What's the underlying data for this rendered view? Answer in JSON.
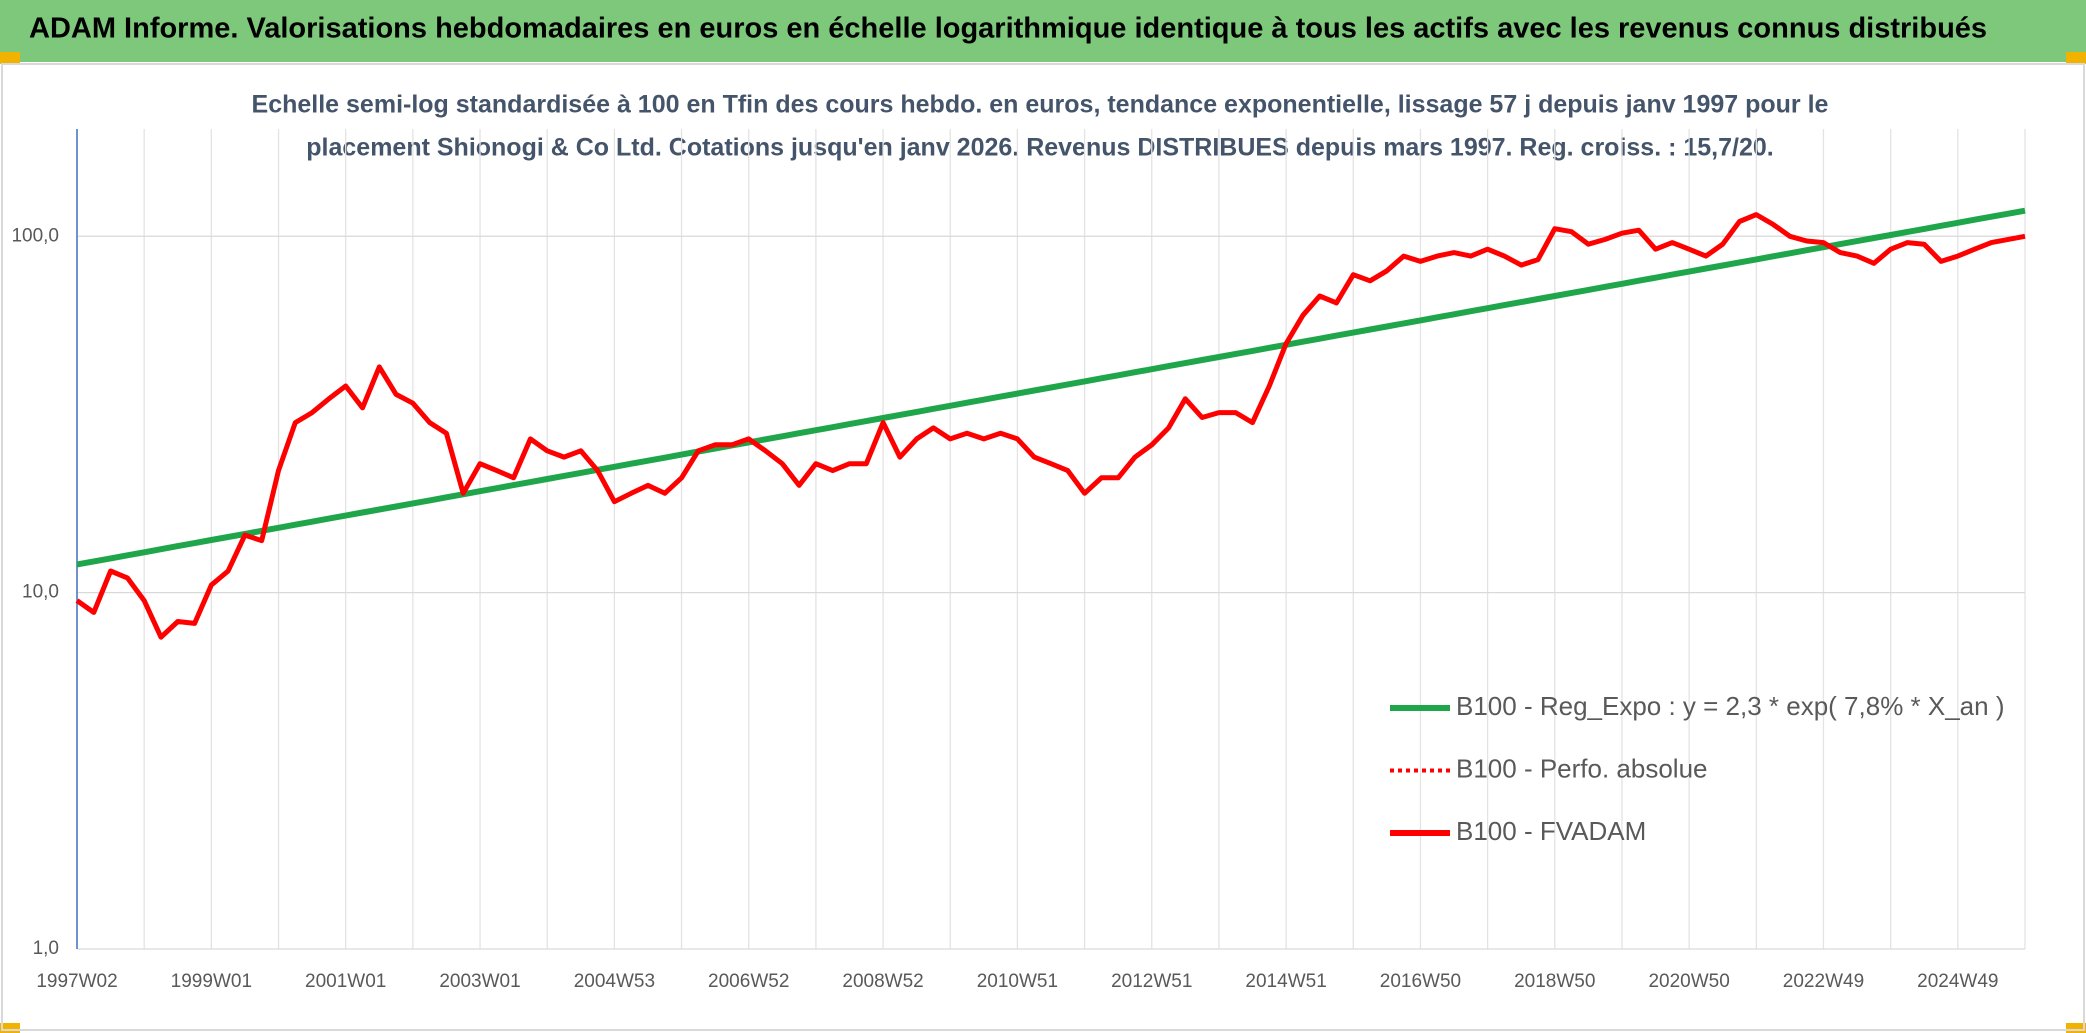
{
  "chart_data": {
    "type": "line",
    "title": "ADAM Informe. Valorisations hebdomadaires en euros en échelle logarithmique identique à tous les actifs avec les revenus connus distribués",
    "subtitle": [
      "Echelle semi-log standardisée à 100 en Tfin des cours hebdo. en euros, tendance exponentielle, lissage 57 j depuis janv 1997 pour le",
      "placement Shionogi & Co Ltd. Cotations jusqu'en janv 2026. Revenus DISTRIBUES depuis mars 1997. Reg. croiss. : 15,7/20."
    ],
    "categories": [
      "1997W02",
      null,
      null,
      null,
      null,
      null,
      null,
      null,
      "1999W01",
      null,
      null,
      null,
      null,
      null,
      null,
      null,
      "2001W01",
      null,
      null,
      null,
      null,
      null,
      null,
      null,
      "2003W01",
      null,
      null,
      null,
      null,
      null,
      null,
      null,
      "2004W53",
      null,
      null,
      null,
      null,
      null,
      null,
      null,
      "2006W52",
      null,
      null,
      null,
      null,
      null,
      null,
      null,
      "2008W52",
      null,
      null,
      null,
      null,
      null,
      null,
      null,
      "2010W51",
      null,
      null,
      null,
      null,
      null,
      null,
      null,
      "2012W51",
      null,
      null,
      null,
      null,
      null,
      null,
      null,
      "2014W51",
      null,
      null,
      null,
      null,
      null,
      null,
      null,
      "2016W50",
      null,
      null,
      null,
      null,
      null,
      null,
      null,
      "2018W50",
      null,
      null,
      null,
      null,
      null,
      null,
      null,
      "2020W50",
      null,
      null,
      null,
      null,
      null,
      null,
      null,
      "2022W49",
      null,
      null,
      null,
      null,
      null,
      null,
      null,
      "2024W49",
      null,
      null,
      null,
      null
    ],
    "series": [
      {
        "name": "B100 - Reg_Expo : y = 2,3 * exp( 7,8% *  X_an )",
        "color": "#1fa64a",
        "dash": "solid",
        "values": [
          12.0,
          12.24,
          12.48,
          12.73,
          12.98,
          13.24,
          13.51,
          13.77,
          14.05,
          14.33,
          14.61,
          14.91,
          15.2,
          15.51,
          15.81,
          16.13,
          16.45,
          16.78,
          17.11,
          17.45,
          17.8,
          18.15,
          18.51,
          18.88,
          19.26,
          19.64,
          20.03,
          20.43,
          20.84,
          21.26,
          21.68,
          22.11,
          22.55,
          23.0,
          23.46,
          23.92,
          24.4,
          24.89,
          25.38,
          25.89,
          26.4,
          26.93,
          27.46,
          28.01,
          28.56,
          29.13,
          29.71,
          30.3,
          30.91,
          31.53,
          32.15,
          32.79,
          33.45,
          34.11,
          34.79,
          35.48,
          36.19,
          36.91,
          37.65,
          38.39,
          39.16,
          39.94,
          40.73,
          41.54,
          42.37,
          43.21,
          44.07,
          44.95,
          45.84,
          46.76,
          47.69,
          48.64,
          49.6,
          50.59,
          51.59,
          52.62,
          53.67,
          54.74,
          55.83,
          56.94,
          58.08,
          59.24,
          60.42,
          61.62,
          62.84,
          64.1,
          65.37,
          66.67,
          68.0,
          69.35,
          70.73,
          72.14,
          73.58,
          75.04,
          76.53,
          78.06,
          79.6,
          81.18,
          82.8,
          84.45,
          86.13,
          87.85,
          89.59,
          91.37,
          93.2,
          95.05,
          96.95,
          98.88,
          100.8,
          102.9,
          104.9,
          107.0,
          109.1,
          111.3,
          113.5,
          115.7,
          118.0
        ]
      },
      {
        "name": "B100 - Perfo. absolue",
        "color": "#ff0000",
        "dash": "dotted",
        "values": [
          9.5,
          8.8,
          11.5,
          11.0,
          9.5,
          7.5,
          8.3,
          8.2,
          10.5,
          11.5,
          14.5,
          14.0,
          22,
          30,
          32,
          35,
          38,
          33,
          43,
          36,
          34,
          30,
          28,
          19,
          23,
          22,
          21,
          27,
          25,
          24,
          25,
          22,
          18,
          19,
          20,
          19,
          21,
          25,
          26,
          26,
          27,
          25,
          23,
          20,
          23,
          22,
          23,
          23,
          30,
          24,
          27,
          29,
          27,
          28,
          27,
          28,
          27,
          24,
          23,
          22,
          19,
          21,
          21,
          24,
          26,
          29,
          35,
          31,
          32,
          32,
          30,
          38,
          50,
          60,
          68,
          65,
          78,
          75,
          80,
          88,
          85,
          88,
          90,
          88,
          92,
          88,
          83,
          86,
          105,
          103,
          95,
          98,
          102,
          104,
          92,
          96,
          92,
          88,
          95,
          110,
          115,
          108,
          100,
          97,
          96,
          90,
          88,
          84,
          92,
          96,
          95,
          85,
          88,
          92,
          96,
          98,
          100
        ]
      },
      {
        "name": "B100 - FVADAM",
        "color": "#ff0000",
        "dash": "solid",
        "values": [
          9.5,
          8.8,
          11.5,
          11.0,
          9.5,
          7.5,
          8.3,
          8.2,
          10.5,
          11.5,
          14.5,
          14.0,
          22,
          30,
          32,
          35,
          38,
          33,
          43,
          36,
          34,
          30,
          28,
          19,
          23,
          22,
          21,
          27,
          25,
          24,
          25,
          22,
          18,
          19,
          20,
          19,
          21,
          25,
          26,
          26,
          27,
          25,
          23,
          20,
          23,
          22,
          23,
          23,
          30,
          24,
          27,
          29,
          27,
          28,
          27,
          28,
          27,
          24,
          23,
          22,
          19,
          21,
          21,
          24,
          26,
          29,
          35,
          31,
          32,
          32,
          30,
          38,
          50,
          60,
          68,
          65,
          78,
          75,
          80,
          88,
          85,
          88,
          90,
          88,
          92,
          88,
          83,
          86,
          105,
          103,
          95,
          98,
          102,
          104,
          92,
          96,
          92,
          88,
          95,
          110,
          115,
          108,
          100,
          97,
          96,
          90,
          88,
          84,
          92,
          96,
          95,
          85,
          88,
          92,
          96,
          98,
          100
        ]
      }
    ],
    "ylog": true,
    "ylim": [
      1,
      200
    ],
    "yticks": [
      {
        "value": 1,
        "label": "1,0"
      },
      {
        "value": 10,
        "label": "10,0"
      },
      {
        "value": 100,
        "label": "100,0"
      }
    ],
    "grid": true,
    "legend": "lower-right"
  }
}
